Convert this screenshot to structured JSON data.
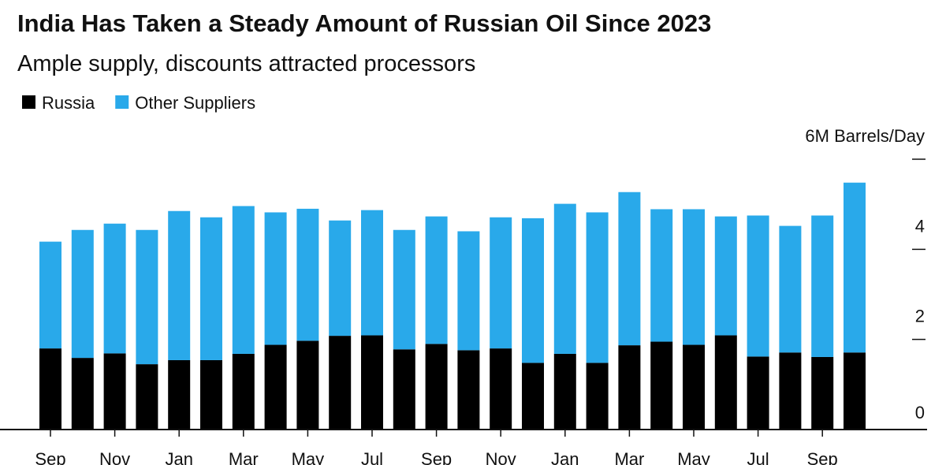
{
  "chart_data": {
    "type": "stacked_bar",
    "title": "India Has Taken a Steady Amount of Russian Oil Since 2023",
    "subtitle": "Ample supply, discounts attracted processors",
    "categories": [
      "Sep",
      null,
      "Nov",
      null,
      "Jan",
      null,
      "Mar",
      null,
      "May",
      null,
      "Jul",
      null,
      "Sep",
      null,
      "Nov",
      null,
      "Jan",
      null,
      "Mar",
      null,
      "May",
      null,
      "Jul",
      null,
      "Sep",
      null
    ],
    "series": [
      {
        "name": "Russia",
        "color": "#000000",
        "values": [
          1.8,
          1.59,
          1.69,
          1.45,
          1.54,
          1.54,
          1.68,
          1.88,
          1.97,
          2.08,
          2.09,
          1.78,
          1.9,
          1.76,
          1.8,
          1.48,
          1.68,
          1.48,
          1.87,
          1.95,
          1.88,
          2.09,
          1.62,
          1.71,
          1.61,
          1.71
        ]
      },
      {
        "name": "Other Suppliers",
        "color": "#29a9ea",
        "values": [
          2.37,
          2.84,
          2.88,
          2.98,
          3.31,
          3.17,
          3.28,
          2.94,
          2.93,
          2.56,
          2.78,
          2.65,
          2.83,
          2.64,
          2.91,
          3.21,
          3.33,
          3.34,
          3.4,
          2.94,
          3.01,
          2.64,
          3.13,
          2.81,
          3.14,
          3.77
        ]
      }
    ],
    "ylim": [
      0,
      6
    ],
    "yticks": [
      0,
      2,
      4,
      {
        "value": 6,
        "label": "6M Barrels/Day"
      }
    ],
    "grid": false
  }
}
